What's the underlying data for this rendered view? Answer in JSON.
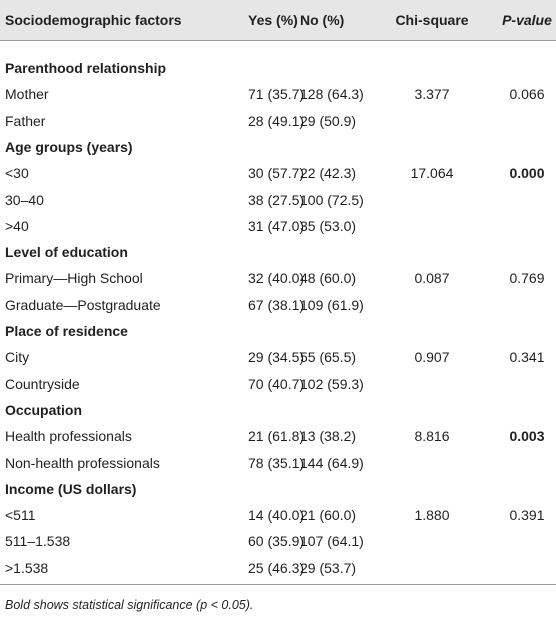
{
  "table": {
    "header": [
      "Sociodemographic factors",
      "Yes (%)",
      "No (%)",
      "Chi-square",
      "P-value"
    ],
    "groups": [
      {
        "title": "Parenthood relationship",
        "significant": false,
        "rows": [
          [
            "Mother",
            "71 (35.7)",
            "128 (64.3)",
            "3.377",
            "0.066"
          ],
          [
            "Father",
            "28 (49.1)",
            "29 (50.9)"
          ]
        ]
      },
      {
        "title": "Age groups (years)",
        "significant": true,
        "rows": [
          [
            "<30",
            "30 (57.7)",
            "22 (42.3)",
            "17.064",
            "0.000"
          ],
          [
            "30–40",
            "38 (27.5)",
            "100 (72.5)"
          ],
          [
            ">40",
            "31 (47.0)",
            "35 (53.0)"
          ]
        ]
      },
      {
        "title": "Level of education",
        "significant": false,
        "rows": [
          [
            "Primary—High School",
            "32 (40.0)",
            "48 (60.0)",
            "0.087",
            "0.769"
          ],
          [
            "Graduate—Postgraduate",
            "67 (38.1)",
            "109 (61.9)"
          ]
        ]
      },
      {
        "title": "Place of residence",
        "significant": false,
        "rows": [
          [
            "City",
            "29 (34.5)",
            "55 (65.5)",
            "0.907",
            "0.341"
          ],
          [
            "Countryside",
            "70 (40.7)",
            "102 (59.3)"
          ]
        ]
      },
      {
        "title": "Occupation",
        "significant": true,
        "rows": [
          [
            "Health professionals",
            "21 (61.8)",
            "13 (38.2)",
            "8.816",
            "0.003"
          ],
          [
            "Non-health professionals",
            "78 (35.1)",
            "144 (64.9)"
          ]
        ]
      },
      {
        "title": "Income (US dollars)",
        "significant": false,
        "rows": [
          [
            "<511",
            "14 (40.0)",
            "21 (60.0)",
            "1.880",
            "0.391"
          ],
          [
            "511–1.538",
            "60 (35.9)",
            "107 (64.1)"
          ],
          [
            ">1.538",
            "25 (46.3)",
            "29 (53.7)"
          ]
        ]
      }
    ],
    "footnote": "Bold shows statistical significance (p < 0.05)."
  }
}
